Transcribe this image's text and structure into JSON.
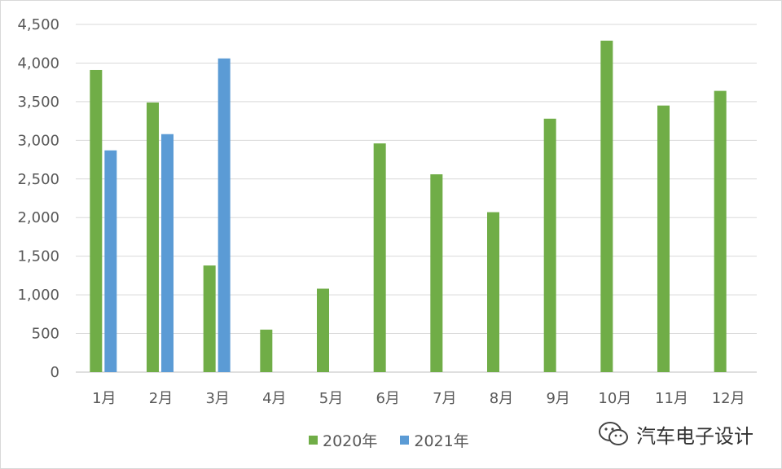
{
  "chart_data": {
    "type": "bar",
    "categories": [
      "1月",
      "2月",
      "3月",
      "4月",
      "5月",
      "6月",
      "7月",
      "8月",
      "9月",
      "10月",
      "11月",
      "12月"
    ],
    "series": [
      {
        "name": "2020年",
        "color": "#70ad47",
        "values": [
          3910,
          3490,
          1380,
          550,
          1080,
          2960,
          2560,
          2070,
          3280,
          4290,
          3450,
          3640
        ]
      },
      {
        "name": "2021年",
        "color": "#5b9bd5",
        "values": [
          2870,
          3080,
          4060,
          null,
          null,
          null,
          null,
          null,
          null,
          null,
          null,
          null
        ]
      }
    ],
    "yticks": [
      "0",
      "500",
      "1,000",
      "1,500",
      "2,000",
      "2,500",
      "3,000",
      "3,500",
      "4,000",
      "4,500"
    ],
    "ylim": [
      0,
      4500
    ],
    "grid": true,
    "legend_position": "bottom",
    "title": "",
    "xlabel": "",
    "ylabel": ""
  },
  "legend": {
    "items": [
      {
        "label": "2020年",
        "color": "#70ad47"
      },
      {
        "label": "2021年",
        "color": "#5b9bd5"
      }
    ]
  },
  "watermark": {
    "text": "汽车电子设计",
    "icon": "wechat-icon"
  }
}
